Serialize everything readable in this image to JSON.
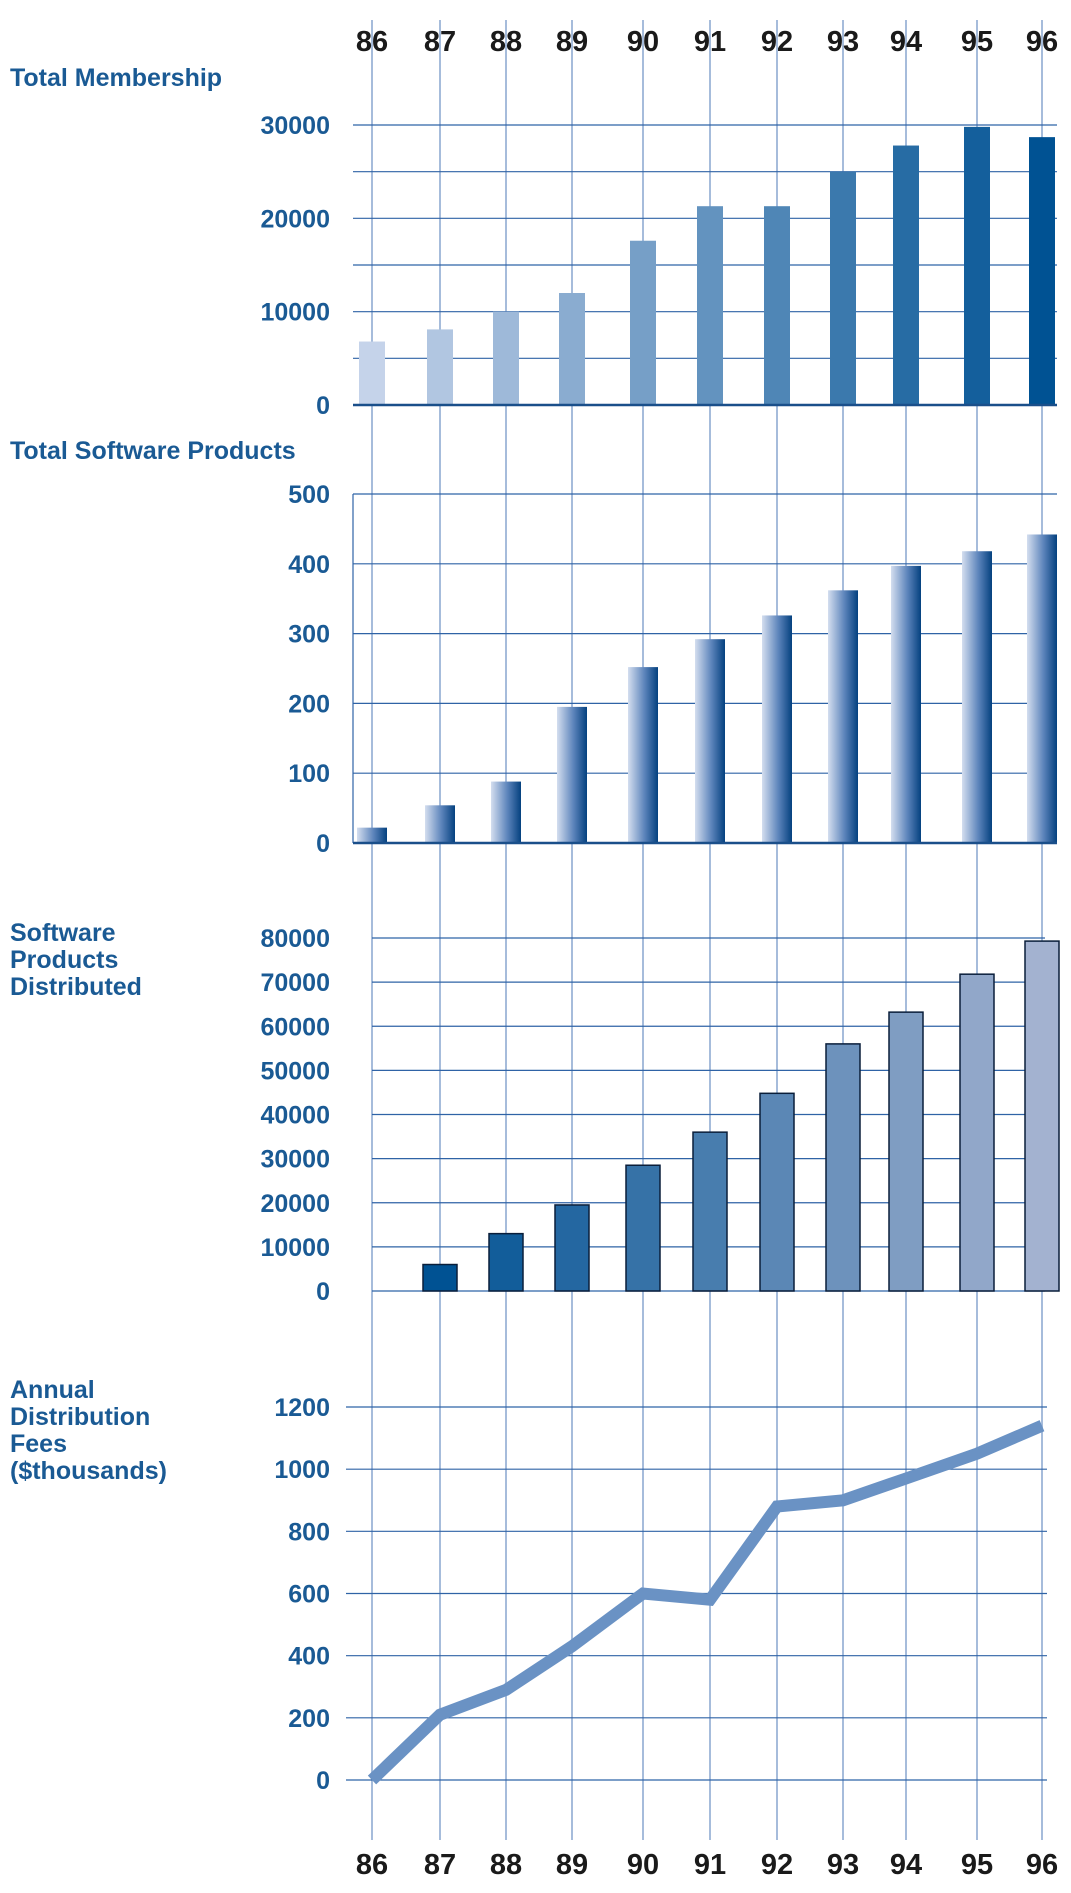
{
  "years": [
    "86",
    "87",
    "88",
    "89",
    "90",
    "91",
    "92",
    "93",
    "94",
    "95",
    "96"
  ],
  "colors": {
    "title": "#1a5a94",
    "grid_h": "#2f63a6",
    "grid_v": "#a6bcdb",
    "line": "#6a92c4",
    "membership_gradient": [
      "#c5d3ea",
      "#005293"
    ],
    "distributed_gradient": [
      "#005293",
      "#a3b2d0"
    ]
  },
  "chart_data": [
    {
      "type": "bar",
      "title": "Total Membership",
      "categories": [
        "86",
        "87",
        "88",
        "89",
        "90",
        "91",
        "92",
        "93",
        "94",
        "95",
        "96"
      ],
      "values": [
        6800,
        8100,
        10000,
        12000,
        17600,
        21300,
        21300,
        25000,
        27800,
        29800,
        28700
      ],
      "yticks": [
        "0",
        "10000",
        "20000",
        "30000"
      ],
      "ylim": [
        0,
        30000
      ],
      "grid": true
    },
    {
      "type": "bar",
      "title": "Total Software Products",
      "categories": [
        "86",
        "87",
        "88",
        "89",
        "90",
        "91",
        "92",
        "93",
        "94",
        "95",
        "96"
      ],
      "values": [
        22,
        54,
        88,
        195,
        252,
        292,
        326,
        362,
        397,
        418,
        442
      ],
      "yticks": [
        "0",
        "100",
        "200",
        "300",
        "400",
        "500"
      ],
      "ylim": [
        0,
        500
      ],
      "grid": true
    },
    {
      "type": "bar",
      "title": "Software Products Distributed",
      "title_lines": [
        "Software",
        "Products",
        "Distributed"
      ],
      "categories": [
        "86",
        "87",
        "88",
        "89",
        "90",
        "91",
        "92",
        "93",
        "94",
        "95",
        "96"
      ],
      "values": [
        null,
        6000,
        13000,
        19500,
        28500,
        36000,
        44800,
        56000,
        63200,
        71800,
        79300
      ],
      "yticks": [
        "0",
        "10000",
        "20000",
        "30000",
        "40000",
        "50000",
        "60000",
        "70000",
        "80000"
      ],
      "ylim": [
        0,
        80000
      ],
      "grid": true
    },
    {
      "type": "line",
      "title": "Annual Distribution Fees ($thousands)",
      "title_lines": [
        "Annual",
        "Distribution",
        "Fees",
        "($thousands)"
      ],
      "x": [
        "86",
        "87",
        "88",
        "89",
        "90",
        "91",
        "92",
        "93",
        "94",
        "95",
        "96"
      ],
      "values": [
        0,
        210,
        290,
        430,
        600,
        580,
        880,
        900,
        970,
        1050,
        1140
      ],
      "yticks": [
        "0",
        "200",
        "400",
        "600",
        "800",
        "1000",
        "1200"
      ],
      "ylim": [
        0,
        1200
      ],
      "grid": true
    }
  ]
}
